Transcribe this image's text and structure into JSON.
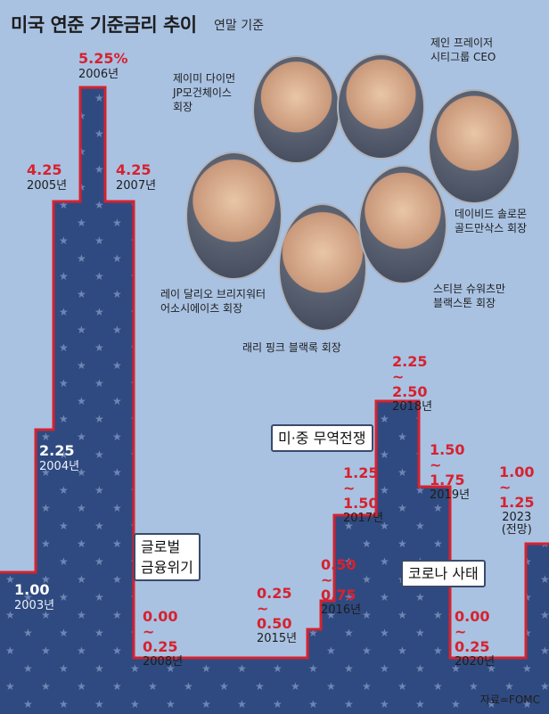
{
  "title": "미국 연준 기준금리 추이",
  "subtitle": "연말 기준",
  "source": "자료=FOMC",
  "colors": {
    "background": "#a9c2e2",
    "bar_fill": "#2f4a80",
    "bar_edge": "#d6222f",
    "value_text": "#d6222f"
  },
  "chart_data": {
    "type": "area",
    "title": "미국 연준 기준금리 추이",
    "subtitle": "연말 기준",
    "categories": [
      "2003년",
      "2004년",
      "2005년",
      "2006년",
      "2007년",
      "2008년",
      "2015년",
      "2016년",
      "2017년",
      "2018년",
      "2019년",
      "2020년",
      "2023년 (전망)"
    ],
    "series": [
      {
        "values": [
          1.0,
          2.25,
          4.25,
          5.25,
          4.25,
          0.25,
          0.5,
          0.75,
          1.5,
          2.5,
          1.75,
          0.25,
          1.25
        ]
      }
    ],
    "ranges_lower": [
      1.0,
      2.25,
      4.25,
      5.25,
      4.25,
      0.0,
      0.25,
      0.5,
      1.25,
      2.25,
      1.5,
      0.0,
      1.0
    ],
    "ylim": [
      0,
      5.6
    ],
    "grid": false,
    "labels": [
      {
        "value": "1.00",
        "year": "2003년"
      },
      {
        "value": "2.25",
        "year": "2004년"
      },
      {
        "value": "4.25",
        "year": "2005년"
      },
      {
        "value": "5.25%",
        "year": "2006년"
      },
      {
        "value": "4.25",
        "year": "2007년"
      },
      {
        "value": "0.00\n~\n0.25",
        "year": "2008년"
      },
      {
        "value": "0.25\n~\n0.50",
        "year": "2015년"
      },
      {
        "value": "0.50\n~\n0.75",
        "year": "2016년"
      },
      {
        "value": "1.25\n~\n1.50",
        "year": "2017년"
      },
      {
        "value": "2.25\n~\n2.50",
        "year": "2018년"
      },
      {
        "value": "1.50\n~\n1.75",
        "year": "2019년"
      },
      {
        "value": "0.00\n~\n0.25",
        "year": "2020년"
      },
      {
        "value": "1.00\n~\n1.25",
        "year": "2023\n(전망)"
      }
    ],
    "annotations": [
      "글로벌\n금융위기",
      "미·중 무역전쟁",
      "코로나 사태"
    ]
  },
  "people": [
    {
      "label": "제이미 다이먼\nJP모건체이스\n회장",
      "icon": "portrait-icon"
    },
    {
      "label": "제인 프레이저\n시티그룹 CEO",
      "icon": "portrait-icon"
    },
    {
      "label": "데이비드 솔로몬\n골드만삭스 회장",
      "icon": "portrait-icon"
    },
    {
      "label": "레이 달리오 브리지워터\n어소시에이츠 회장",
      "icon": "portrait-icon"
    },
    {
      "label": "래리 핑크 블랙록 회장",
      "icon": "portrait-icon"
    },
    {
      "label": "스티븐 슈워츠만\n블랙스톤 회장",
      "icon": "portrait-icon"
    }
  ]
}
